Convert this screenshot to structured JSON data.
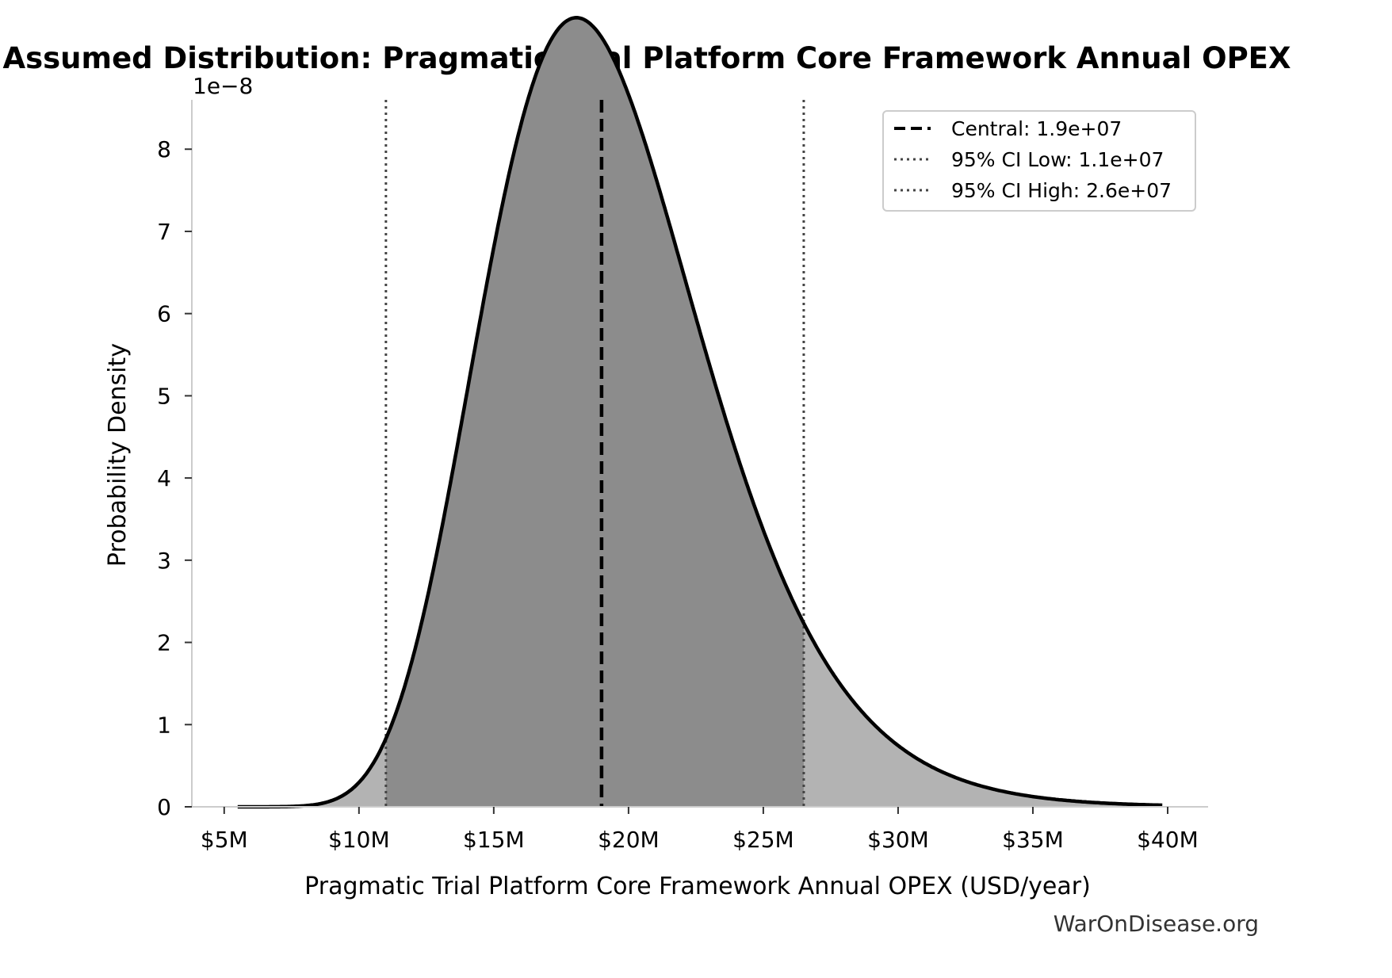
{
  "chart_data": {
    "type": "area",
    "title": "Assumed Distribution: Pragmatic Trial Platform Core Framework Annual OPEX",
    "xlabel": "Pragmatic Trial Platform Core Framework Annual OPEX (USD/year)",
    "ylabel": "Probability Density",
    "y_scale_label": "1e−8",
    "xlim": [
      3800000,
      41500000
    ],
    "ylim": [
      0,
      8.6e-08
    ],
    "x_ticks": [
      5000000,
      10000000,
      15000000,
      20000000,
      25000000,
      30000000,
      35000000,
      40000000
    ],
    "x_tick_labels": [
      "$5M",
      "$10M",
      "$15M",
      "$20M",
      "$25M",
      "$30M",
      "$35M",
      "$40M"
    ],
    "y_ticks": [
      0,
      1e-08,
      2e-08,
      3e-08,
      4e-08,
      5e-08,
      6e-08,
      7e-08,
      8e-08
    ],
    "y_tick_labels": [
      "0",
      "1",
      "2",
      "3",
      "4",
      "5",
      "6",
      "7",
      "8"
    ],
    "grid": false,
    "legend_position": "top-right",
    "distribution": {
      "family": "lognormal",
      "median": 19000000,
      "ci_low": 11000000,
      "ci_high": 26500000,
      "x_start": 5500000,
      "x_end": 39800000
    },
    "series": [
      {
        "name": "Central: 1.9e+07",
        "value": 19000000,
        "style": "dashed"
      },
      {
        "name": "95% CI Low: 1.1e+07",
        "value": 11000000,
        "style": "dotted"
      },
      {
        "name": "95% CI High: 2.6e+07",
        "value": 26500000,
        "style": "dotted"
      }
    ],
    "colors": {
      "curve": "#000000",
      "tail_fill": "#b3b3b3",
      "ci_fill": "#8c8c8c",
      "ci_line": "#444444",
      "axis": "#cccccc"
    },
    "watermark": "WarOnDisease.org"
  }
}
